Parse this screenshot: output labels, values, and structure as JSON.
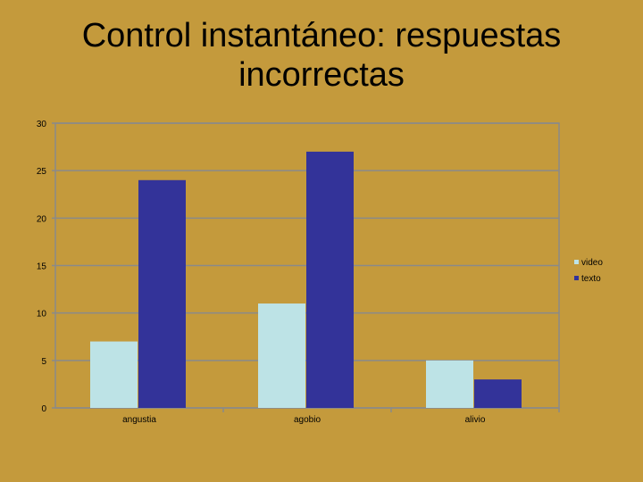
{
  "title": {
    "line1": "Control instantáneo: respuestas",
    "line2": "incorrectas"
  },
  "chart_data": {
    "type": "bar",
    "title": "Control instantáneo: respuestas incorrectas",
    "categories": [
      "angustia",
      "agobio",
      "alivio"
    ],
    "series": [
      {
        "name": "video",
        "values": [
          7,
          11,
          5
        ],
        "color": "#bde3e6"
      },
      {
        "name": "texto",
        "values": [
          24,
          27,
          3
        ],
        "color": "#333399"
      }
    ],
    "ylim": [
      0,
      30
    ],
    "yticks": [
      0,
      5,
      10,
      15,
      20,
      25,
      30
    ],
    "grid": true,
    "legend": "right",
    "xlabel": "",
    "ylabel": ""
  }
}
